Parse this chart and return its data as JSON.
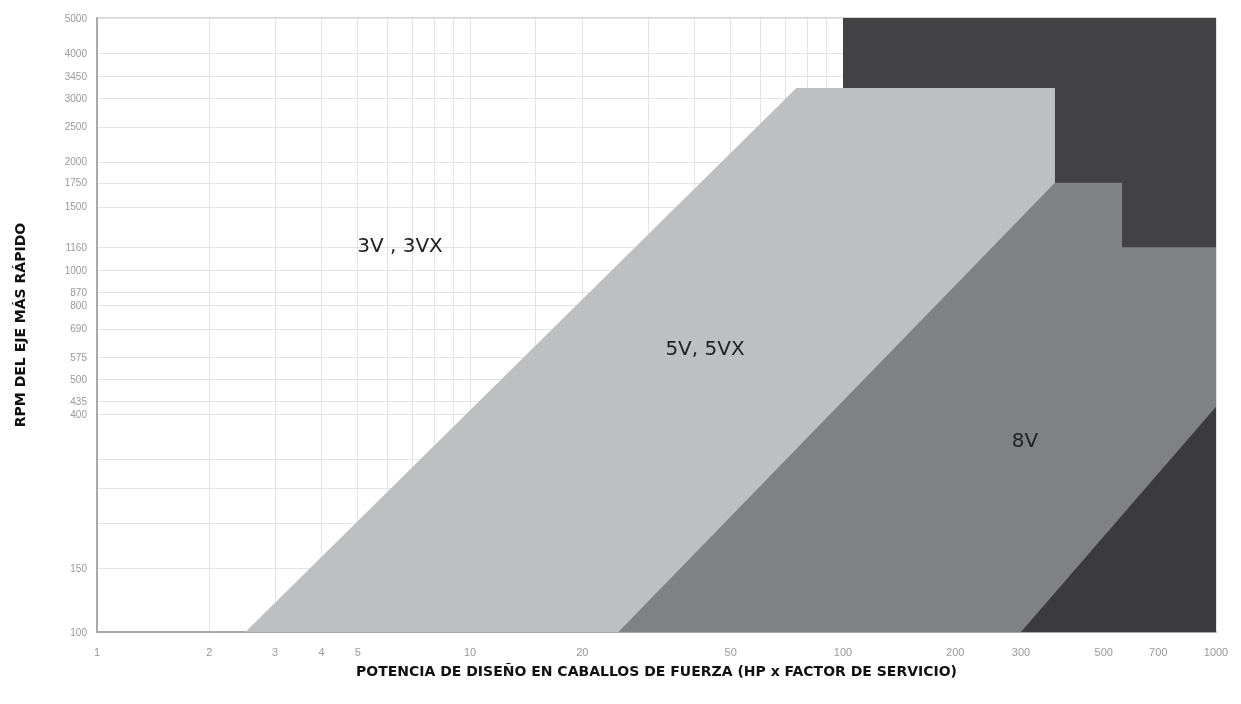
{
  "chart_data": {
    "type": "area",
    "xlabel": "POTENCIA DE DISEÑO EN CABALLOS DE FUERZA (HP x FACTOR DE SERVICIO)",
    "ylabel": "RPM DEL EJE MÁS RÁPIDO",
    "log": "xy",
    "grid": true,
    "marker": "none",
    "xlim": [
      1,
      1000
    ],
    "ylim": [
      100,
      5000
    ],
    "xticks": [
      1,
      2,
      3,
      4,
      5,
      {
        "value": 6,
        "label": null
      },
      {
        "value": 7,
        "label": null
      },
      {
        "value": 8,
        "label": null
      },
      {
        "value": 9,
        "label": null
      },
      10,
      {
        "value": 15,
        "label": null
      },
      20,
      {
        "value": 30,
        "label": null
      },
      {
        "value": 40,
        "label": null
      },
      50,
      {
        "value": 60,
        "label": null
      },
      {
        "value": 70,
        "label": null
      },
      {
        "value": 80,
        "label": null
      },
      {
        "value": 90,
        "label": null
      },
      100,
      200,
      300,
      500,
      700,
      1000
    ],
    "yticks": [
      100,
      150,
      {
        "value": 200,
        "label": null
      },
      {
        "value": 250,
        "label": null
      },
      {
        "value": 300,
        "label": null
      },
      400,
      435,
      500,
      575,
      690,
      800,
      870,
      1000,
      1160,
      1500,
      1750,
      2000,
      2500,
      3000,
      3450,
      4000,
      5000
    ],
    "series": [
      {
        "color": "#424244",
        "x": [
          100,
          1000
        ],
        "values": [
          5000,
          5000
        ]
      },
      {
        "color": "#bebfc1",
        "x": [
          2.5,
          75,
          370,
          370
        ],
        "values": [
          100,
          3200,
          3200,
          1750
        ]
      },
      {
        "color": "#808184",
        "x": [
          25,
          370,
          560,
          560,
          1000
        ],
        "values": [
          100,
          1750,
          1750,
          1160,
          1160
        ]
      },
      {
        "color": "#3b3b3d",
        "x": [
          300,
          1000
        ],
        "values": [
          100,
          420
        ]
      }
    ],
    "annotations": [
      "3V , 3VX",
      "5V, 5VX",
      "8V"
    ]
  }
}
